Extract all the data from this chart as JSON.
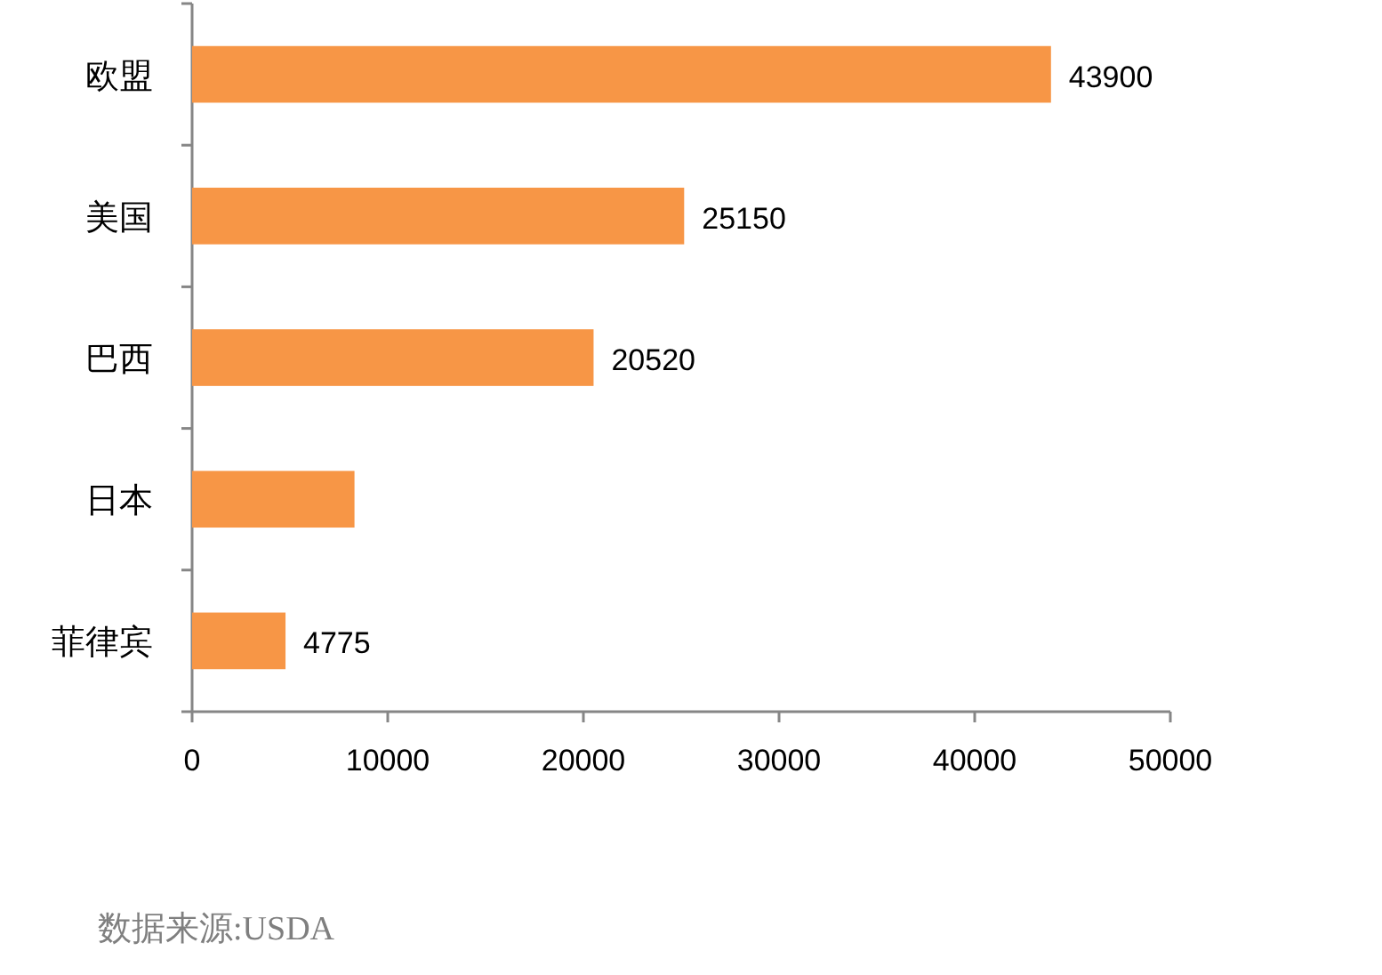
{
  "chart_data": {
    "type": "bar",
    "orientation": "horizontal",
    "categories": [
      "欧盟",
      "美国",
      "巴西",
      "日本",
      "菲律宾"
    ],
    "values": [
      43900,
      25150,
      20520,
      8300,
      4775
    ],
    "value_labels": [
      "43900",
      "25150",
      "20520",
      null,
      "4775"
    ],
    "color": "#f79646",
    "xlim": [
      0,
      50000
    ],
    "xticks": [
      0,
      10000,
      20000,
      30000,
      40000,
      50000
    ],
    "grid": false,
    "annotations": [
      "数据来源:USDA"
    ]
  }
}
